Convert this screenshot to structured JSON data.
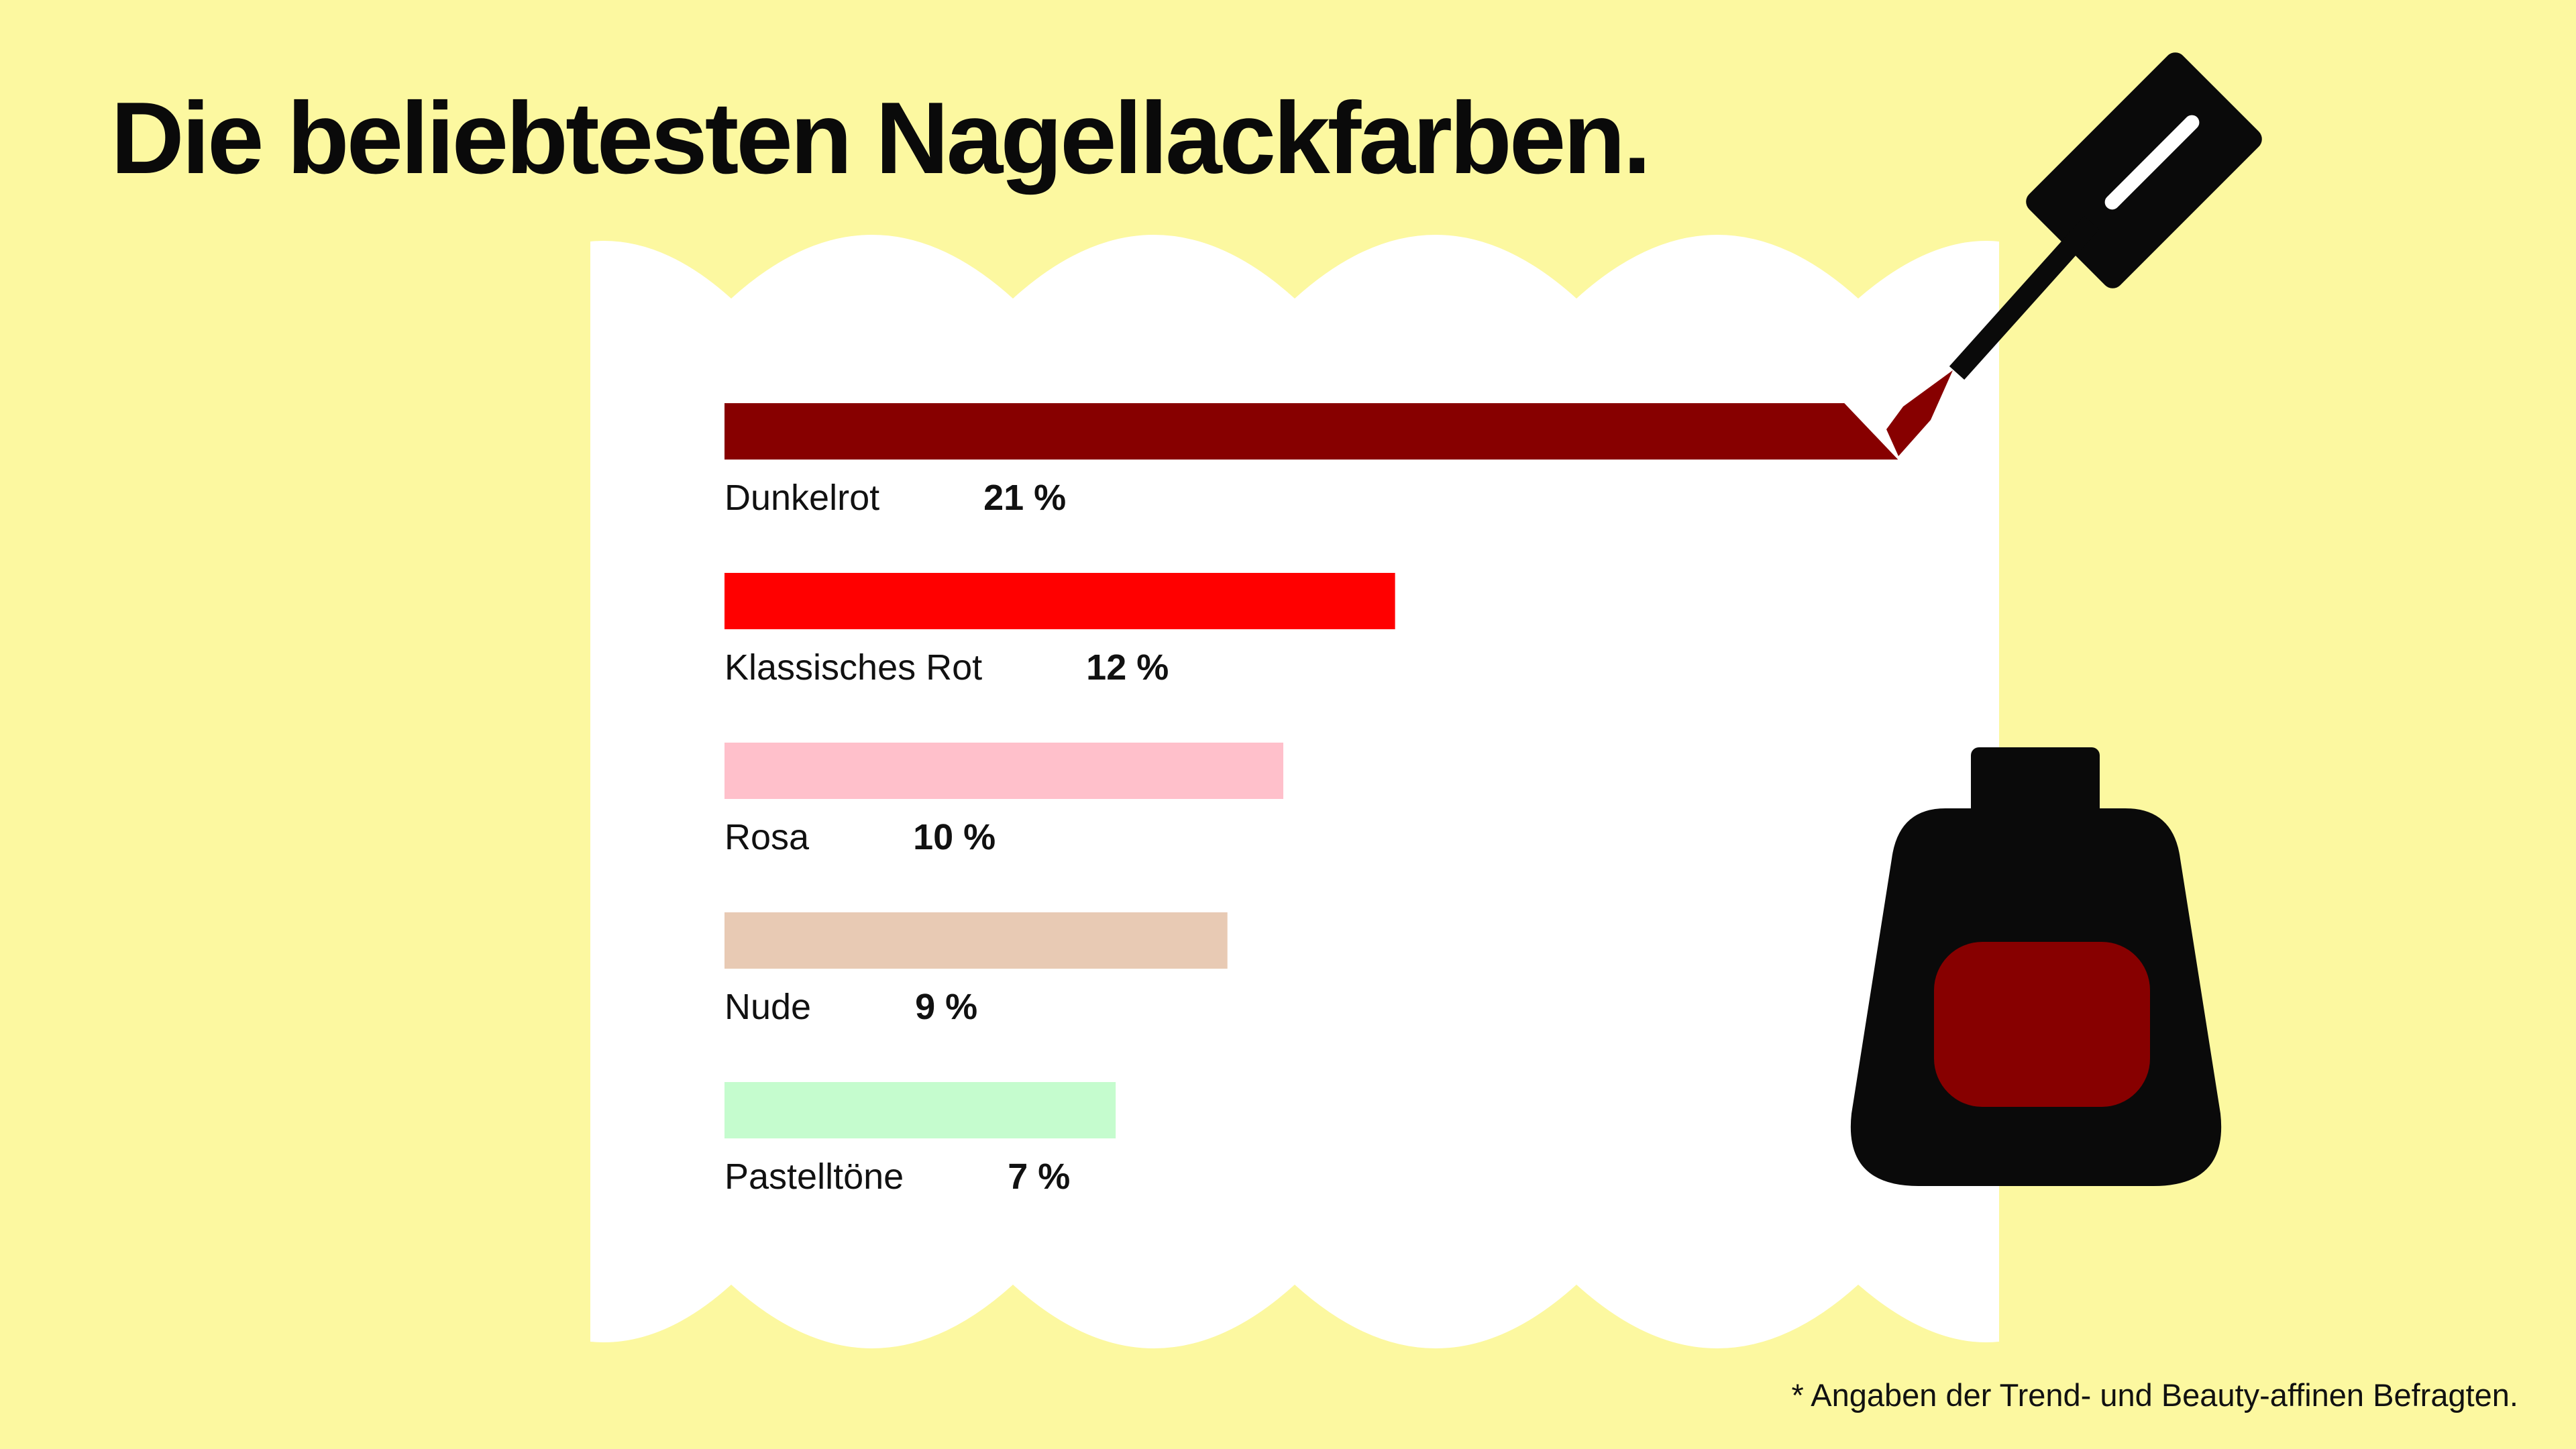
{
  "title": "Die beliebtesten Nagellackfarben.",
  "footnote": "* Angaben der Trend- und Beauty-affinen Befragten.",
  "colors": {
    "background": "#fcf8a0",
    "paper": "#ffffff",
    "ink": "#0a0a0a",
    "polish": "#870000"
  },
  "icons": [
    "nail-polish-brush-icon",
    "nail-polish-bottle-icon"
  ],
  "chart_data": {
    "type": "bar",
    "orientation": "horizontal",
    "categories": [
      "Dunkelrot",
      "Klassisches Rot",
      "Rosa",
      "Nude",
      "Pastelltöne"
    ],
    "values": [
      21,
      12,
      10,
      9,
      7
    ],
    "value_labels": [
      "21 %",
      "12 %",
      "10 %",
      "9 %",
      "7 %"
    ],
    "bar_colors": [
      "#870000",
      "#ff0000",
      "#ffc0cb",
      "#e8cab4",
      "#c5fcce"
    ],
    "unit": "%",
    "title": "Die beliebtesten Nagellackfarben.",
    "xlabel": "",
    "ylabel": "",
    "grid": false,
    "axes_visible": false
  }
}
